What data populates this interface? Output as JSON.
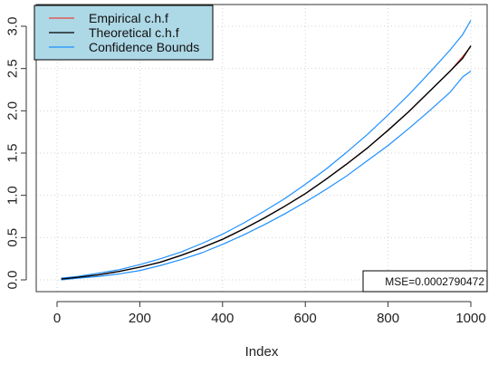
{
  "chart_data": {
    "type": "line",
    "title": "",
    "xlabel": "Index",
    "ylabel": "",
    "xlim": [
      0,
      1000
    ],
    "ylim": [
      0,
      3.0
    ],
    "xticks": [
      0,
      200,
      400,
      600,
      800,
      1000
    ],
    "yticks": [
      0.0,
      0.5,
      1.0,
      1.5,
      2.0,
      2.5,
      3.0
    ],
    "xtick_labels": [
      "0",
      "200",
      "400",
      "600",
      "800",
      "1000"
    ],
    "ytick_labels": [
      "0.0",
      "0.5",
      "1.0",
      "1.5",
      "2.0",
      "2.5",
      "3.0"
    ],
    "grid": true,
    "legend_position": "top-left",
    "legend_background": "#add8e6",
    "x": [
      10,
      50,
      100,
      150,
      200,
      250,
      300,
      350,
      400,
      450,
      500,
      550,
      600,
      650,
      700,
      750,
      800,
      850,
      900,
      950,
      980,
      1000
    ],
    "series": [
      {
        "name": "Empirical c.h.f",
        "color": "#e8453c",
        "values": [
          0.01,
          0.03,
          0.06,
          0.1,
          0.15,
          0.21,
          0.29,
          0.38,
          0.48,
          0.6,
          0.73,
          0.87,
          1.02,
          1.19,
          1.37,
          1.56,
          1.77,
          1.99,
          2.23,
          2.47,
          2.64,
          2.76
        ]
      },
      {
        "name": "Theoretical c.h.f",
        "color": "#000000",
        "values": [
          0.01,
          0.03,
          0.06,
          0.1,
          0.15,
          0.21,
          0.29,
          0.38,
          0.48,
          0.6,
          0.73,
          0.87,
          1.02,
          1.19,
          1.37,
          1.56,
          1.77,
          1.99,
          2.23,
          2.47,
          2.62,
          2.77
        ]
      },
      {
        "name": "Confidence Bounds",
        "color": "#1e90ff",
        "values": [
          0.02,
          0.04,
          0.08,
          0.12,
          0.18,
          0.25,
          0.33,
          0.43,
          0.54,
          0.67,
          0.81,
          0.96,
          1.13,
          1.31,
          1.51,
          1.72,
          1.95,
          2.19,
          2.45,
          2.72,
          2.9,
          3.07
        ]
      },
      {
        "name": "",
        "color": "#1e90ff",
        "values": [
          0.0,
          0.02,
          0.04,
          0.07,
          0.11,
          0.17,
          0.24,
          0.32,
          0.42,
          0.53,
          0.65,
          0.78,
          0.92,
          1.07,
          1.23,
          1.41,
          1.59,
          1.79,
          2.0,
          2.22,
          2.4,
          2.47
        ]
      }
    ],
    "legend": [
      "Empirical c.h.f",
      "Theoretical c.h.f",
      "Confidence Bounds"
    ],
    "annotation": "MSE=0.0002790472"
  }
}
